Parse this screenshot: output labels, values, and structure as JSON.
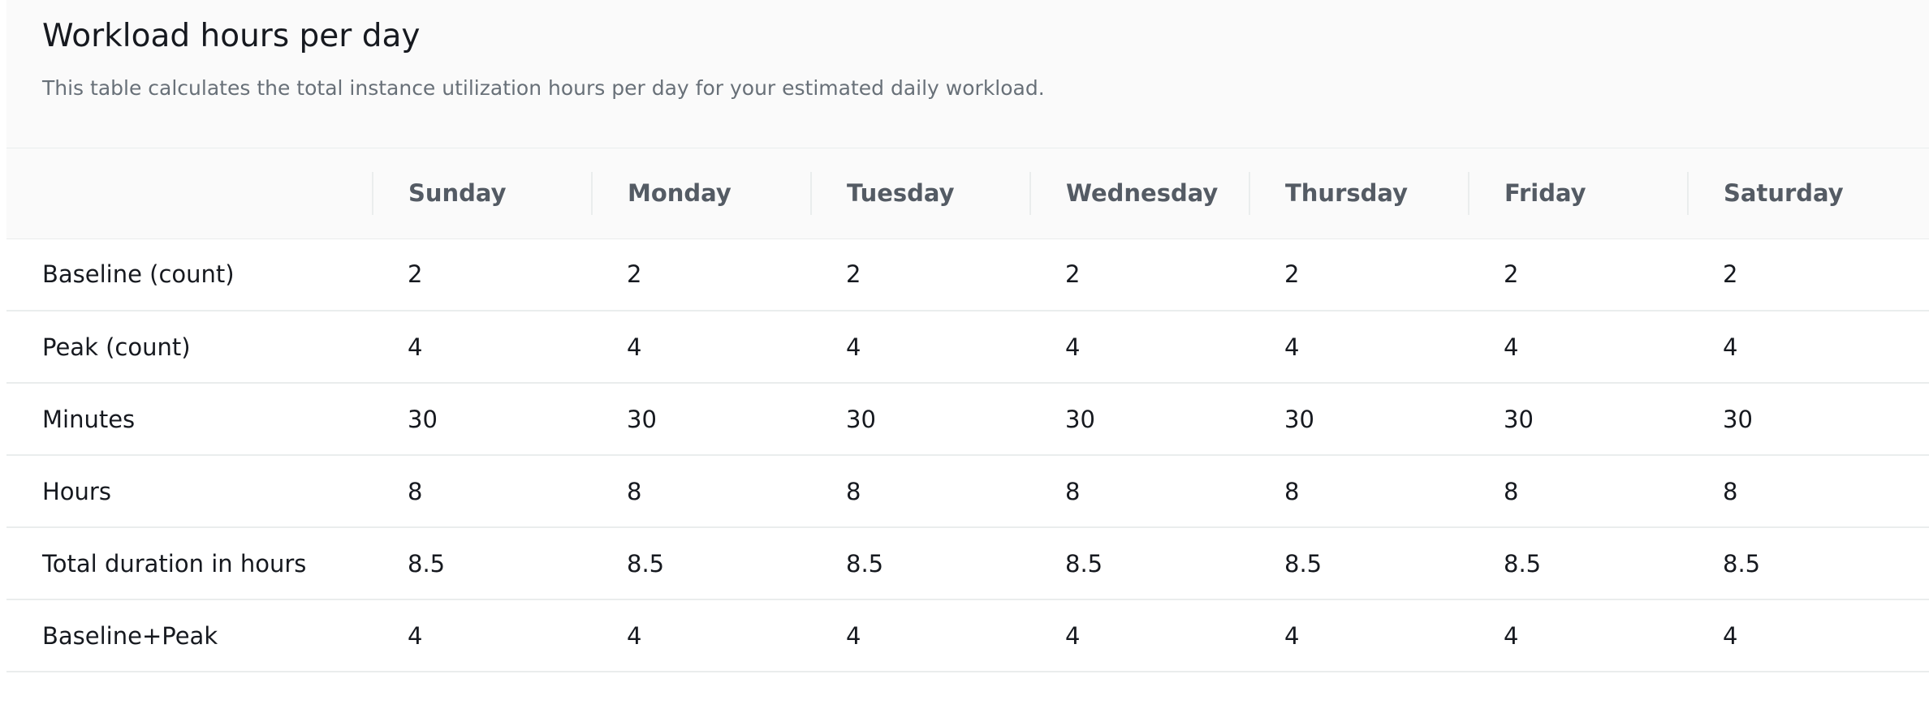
{
  "panel": {
    "title": "Workload hours per day",
    "description": "This table calculates the total instance utilization hours per day for your estimated daily workload."
  },
  "table": {
    "columns": [
      "Sunday",
      "Monday",
      "Tuesday",
      "Wednesday",
      "Thursday",
      "Friday",
      "Saturday"
    ],
    "rows": [
      {
        "label": "Baseline (count)",
        "values": [
          "2",
          "2",
          "2",
          "2",
          "2",
          "2",
          "2"
        ]
      },
      {
        "label": "Peak (count)",
        "values": [
          "4",
          "4",
          "4",
          "4",
          "4",
          "4",
          "4"
        ]
      },
      {
        "label": "Minutes",
        "values": [
          "30",
          "30",
          "30",
          "30",
          "30",
          "30",
          "30"
        ]
      },
      {
        "label": "Hours",
        "values": [
          "8",
          "8",
          "8",
          "8",
          "8",
          "8",
          "8"
        ]
      },
      {
        "label": "Total duration in hours",
        "values": [
          "8.5",
          "8.5",
          "8.5",
          "8.5",
          "8.5",
          "8.5",
          "8.5"
        ]
      },
      {
        "label": "Baseline+Peak",
        "values": [
          "4",
          "4",
          "4",
          "4",
          "4",
          "4",
          "4"
        ]
      }
    ]
  }
}
